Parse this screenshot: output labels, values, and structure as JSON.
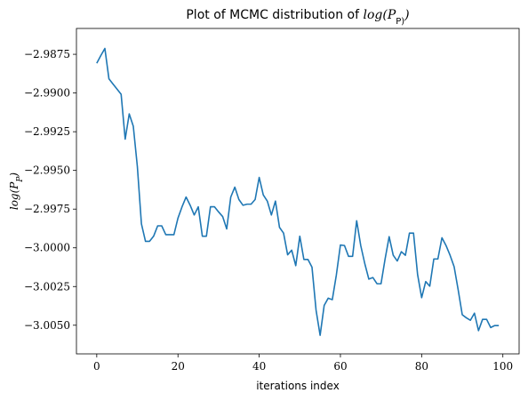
{
  "chart_data": {
    "type": "line",
    "title_prefix": "Plot of MCMC distribution of ",
    "title_math": "log(P_P)",
    "xlabel": "iterations index",
    "ylabel": "log(P_P)",
    "xlim": [
      -5,
      104
    ],
    "ylim": [
      -3.00685,
      -2.98583
    ],
    "xticks": [
      0,
      20,
      40,
      60,
      80,
      100
    ],
    "xtick_labels": [
      "0",
      "20",
      "40",
      "60",
      "80",
      "100"
    ],
    "yticks": [
      -2.9875,
      -2.99,
      -2.9925,
      -2.995,
      -2.9975,
      -3.0,
      -3.0025,
      -3.005
    ],
    "ytick_labels": [
      "−2.9875",
      "−2.9900",
      "−2.9925",
      "−2.9950",
      "−2.9975",
      "−3.0000",
      "−3.0025",
      "−3.0050"
    ],
    "grid": false,
    "series": [
      {
        "color": "#1f77b4",
        "x": [
          0,
          1,
          2,
          3,
          4,
          5,
          6,
          7,
          8,
          9,
          10,
          11,
          12,
          13,
          14,
          15,
          16,
          17,
          18,
          19,
          20,
          21,
          22,
          23,
          24,
          25,
          26,
          27,
          28,
          29,
          30,
          31,
          32,
          33,
          34,
          35,
          36,
          37,
          38,
          39,
          40,
          41,
          42,
          43,
          44,
          45,
          46,
          47,
          48,
          49,
          50,
          51,
          52,
          53,
          54,
          55,
          56,
          57,
          58,
          59,
          60,
          61,
          62,
          63,
          64,
          65,
          66,
          67,
          68,
          69,
          70,
          71,
          72,
          73,
          74,
          75,
          76,
          77,
          78,
          79,
          80,
          81,
          82,
          83,
          84,
          85,
          86,
          87,
          88,
          89,
          90,
          91,
          92,
          93,
          94,
          95,
          96,
          97,
          98,
          99
        ],
        "y": [
          -2.98808,
          -2.98758,
          -2.98712,
          -2.98908,
          -2.98942,
          -2.98975,
          -2.99008,
          -2.99298,
          -2.99135,
          -2.99215,
          -2.99475,
          -2.99845,
          -2.99958,
          -2.99958,
          -2.99925,
          -2.99858,
          -2.99858,
          -2.99915,
          -2.99915,
          -2.99915,
          -2.99808,
          -2.99735,
          -2.99672,
          -2.99725,
          -2.99788,
          -2.99735,
          -2.99925,
          -2.99925,
          -2.99735,
          -2.99735,
          -2.99768,
          -2.99798,
          -2.99878,
          -2.99672,
          -2.99608,
          -2.99688,
          -2.99725,
          -2.99718,
          -2.99718,
          -2.99688,
          -2.99545,
          -2.99658,
          -2.99698,
          -2.99788,
          -2.99698,
          -2.99868,
          -2.99905,
          -3.00045,
          -3.00015,
          -3.00115,
          -2.99925,
          -3.00075,
          -3.00075,
          -3.00125,
          -3.00402,
          -3.00565,
          -3.00372,
          -3.00325,
          -3.00335,
          -3.00175,
          -2.99982,
          -2.99985,
          -3.00055,
          -3.00055,
          -2.99825,
          -2.99985,
          -3.00102,
          -3.00202,
          -3.00192,
          -3.00232,
          -3.00232,
          -3.00072,
          -2.99928,
          -3.00048,
          -3.00085,
          -3.00025,
          -3.00048,
          -2.99905,
          -2.99905,
          -3.00172,
          -3.00322,
          -3.00218,
          -3.00248,
          -3.00072,
          -3.00072,
          -2.99935,
          -2.99985,
          -3.00048,
          -3.00122,
          -3.00272,
          -3.00432,
          -3.00452,
          -3.00468,
          -3.00422,
          -3.00535,
          -3.00462,
          -3.00462,
          -3.00515,
          -3.00502,
          -3.00502
        ]
      }
    ]
  }
}
